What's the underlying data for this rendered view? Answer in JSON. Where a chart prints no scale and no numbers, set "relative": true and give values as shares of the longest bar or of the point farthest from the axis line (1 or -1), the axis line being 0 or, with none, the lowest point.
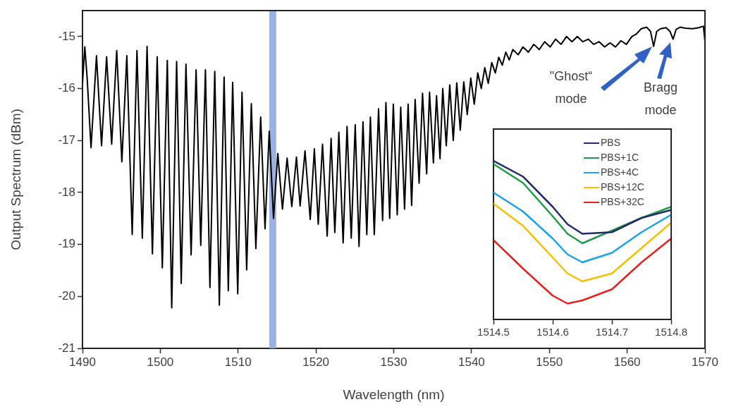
{
  "chart_data": [
    {
      "type": "line",
      "xlabel": "Wavelength (nm)",
      "ylabel": "Output Spectrum (dBm)",
      "x": [
        1490,
        1490.3,
        1490.6,
        1491.1,
        1491.8,
        1492.45,
        1493.1,
        1493.75,
        1494.4,
        1495.06,
        1495.7,
        1496.39,
        1497.0,
        1497.69,
        1498.3,
        1498.99,
        1499.6,
        1500.26,
        1500.9,
        1501.47,
        1502.1,
        1502.69,
        1503.3,
        1503.96,
        1504.6,
        1505.2,
        1505.8,
        1506.38,
        1507.0,
        1507.59,
        1508.2,
        1508.74,
        1509.3,
        1509.95,
        1510.5,
        1511.1,
        1511.7,
        1512.28,
        1512.9,
        1513.46,
        1514.0,
        1514.55,
        1515.1,
        1515.7,
        1516.3,
        1516.9,
        1517.5,
        1517.97,
        1518.6,
        1519.27,
        1519.8,
        1520.3,
        1520.85,
        1521.45,
        1521.95,
        1522.43,
        1522.95,
        1523.5,
        1524.0,
        1524.54,
        1525.05,
        1525.54,
        1526.05,
        1526.54,
        1527.0,
        1527.5,
        1528.05,
        1528.57,
        1529.0,
        1529.48,
        1529.95,
        1530.45,
        1530.9,
        1531.39,
        1531.85,
        1532.3,
        1532.75,
        1533.26,
        1533.7,
        1534.23,
        1534.6,
        1535.1,
        1535.5,
        1535.95,
        1536.3,
        1536.75,
        1537.2,
        1537.65,
        1538.1,
        1538.55,
        1539.0,
        1539.45,
        1539.9,
        1540.35,
        1540.8,
        1541.25,
        1541.7,
        1542.15,
        1542.6,
        1543.05,
        1543.5,
        1543.95,
        1544.4,
        1544.85,
        1545.3,
        1546,
        1546.6,
        1547.3,
        1548,
        1548.7,
        1549.4,
        1550.1,
        1550.8,
        1551.5,
        1552.2,
        1552.9,
        1553.6,
        1554.3,
        1555,
        1555.7,
        1556.4,
        1557.1,
        1557.8,
        1558.5,
        1559.2,
        1559.9,
        1560.6,
        1561.2,
        1561.8,
        1562.5,
        1563.0,
        1563.4,
        1563.8,
        1564.3,
        1565.0,
        1565.5,
        1565.9,
        1566.3,
        1566.8,
        1567.5,
        1568.4,
        1569.2,
        1569.8,
        1570
      ],
      "series": [
        {
          "color": "#000000",
          "values": [
            -15.9,
            -15.2,
            -15.8,
            -17.14,
            -15.37,
            -17.1,
            -15.39,
            -17.07,
            -15.27,
            -17.41,
            -15.37,
            -18.81,
            -15.27,
            -18.88,
            -15.19,
            -19.18,
            -15.39,
            -19.45,
            -15.46,
            -20.22,
            -15.48,
            -19.75,
            -15.53,
            -19.2,
            -15.64,
            -19.02,
            -15.64,
            -19.83,
            -15.67,
            -20.17,
            -15.78,
            -19.89,
            -15.88,
            -19.95,
            -16.07,
            -19.49,
            -16.29,
            -19.08,
            -16.55,
            -18.7,
            -16.82,
            -18.5,
            -17.25,
            -18.32,
            -17.34,
            -18.27,
            -17.32,
            -18.26,
            -17.2,
            -18.52,
            -17.16,
            -18.61,
            -17.07,
            -18.84,
            -16.96,
            -18.77,
            -16.84,
            -18.97,
            -16.73,
            -18.88,
            -16.7,
            -19.04,
            -16.64,
            -18.81,
            -16.55,
            -18.81,
            -16.39,
            -18.54,
            -16.27,
            -18.5,
            -16.3,
            -18.43,
            -16.36,
            -18.32,
            -16.3,
            -18.25,
            -16.21,
            -17.82,
            -16.09,
            -17.64,
            -16.07,
            -17.43,
            -16.14,
            -17.35,
            -16.0,
            -17.1,
            -15.93,
            -17.0,
            -15.89,
            -16.8,
            -15.87,
            -16.5,
            -15.8,
            -16.3,
            -15.7,
            -16.0,
            -15.6,
            -15.9,
            -15.5,
            -15.7,
            -15.4,
            -15.55,
            -15.3,
            -15.45,
            -15.25,
            -15.35,
            -15.2,
            -15.3,
            -15.15,
            -15.25,
            -15.1,
            -15.2,
            -15.05,
            -15.15,
            -15.0,
            -15.1,
            -15.0,
            -15.1,
            -15.05,
            -15.15,
            -15.1,
            -15.2,
            -15.12,
            -15.2,
            -15.08,
            -15.15,
            -15.0,
            -14.95,
            -14.85,
            -14.82,
            -14.9,
            -15.19,
            -14.9,
            -14.85,
            -14.83,
            -14.9,
            -15.05,
            -14.86,
            -14.82,
            -14.84,
            -14.85,
            -14.83,
            -14.8,
            -15.1
          ]
        }
      ],
      "xlim": [
        1490,
        1570
      ],
      "xticks": [
        1490,
        1500,
        1510,
        1520,
        1530,
        1540,
        1550,
        1560,
        1570
      ],
      "ylim": [
        -21,
        -14.5
      ],
      "yticks": [
        -21,
        -20,
        -19,
        -18,
        -17,
        -16,
        -15
      ],
      "bands": [
        {
          "axis": "x",
          "from": 1514.0,
          "to": 1514.9,
          "color": "#8ea9e0"
        }
      ],
      "annotations": [
        "\"Ghost“ mode",
        "Bragg mode"
      ],
      "grid": false,
      "legend": false,
      "marker": "none",
      "line_style": "solid"
    },
    {
      "type": "line",
      "relative": true,
      "x": [
        1514.5,
        1514.55,
        1514.6,
        1514.625,
        1514.65,
        1514.7,
        1514.75,
        1514.8
      ],
      "series": [
        {
          "name": "PBS",
          "color": "#1f2d6b",
          "values": [
            1.0,
            0.9,
            0.71,
            0.6,
            0.54,
            0.55,
            0.64,
            0.69
          ]
        },
        {
          "name": "PBS+1C",
          "color": "#1f9e4a",
          "values": [
            0.98,
            0.86,
            0.65,
            0.54,
            0.48,
            0.56,
            0.64,
            0.71
          ]
        },
        {
          "name": "PBS+4C",
          "color": "#1aa3e8",
          "values": [
            0.8,
            0.68,
            0.51,
            0.41,
            0.36,
            0.42,
            0.55,
            0.66
          ]
        },
        {
          "name": "PBS+12C",
          "color": "#f5c000",
          "values": [
            0.73,
            0.59,
            0.39,
            0.29,
            0.24,
            0.29,
            0.45,
            0.61
          ]
        },
        {
          "name": "PBS+32C",
          "color": "#e8211c",
          "values": [
            0.5,
            0.32,
            0.15,
            0.1,
            0.12,
            0.19,
            0.36,
            0.51
          ]
        }
      ],
      "xlim": [
        1514.5,
        1514.8
      ],
      "xticks": [
        1514.5,
        1514.6,
        1514.7,
        1514.8
      ],
      "tick_labels": "x",
      "grid": false,
      "legend": "top right",
      "marker": "none",
      "line_style": "solid"
    }
  ]
}
